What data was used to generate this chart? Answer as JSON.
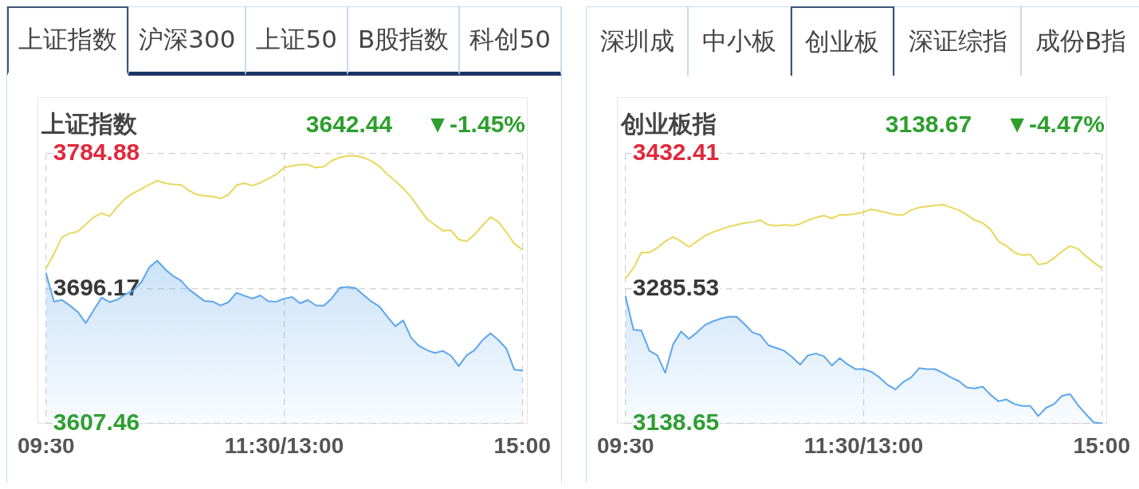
{
  "chart_data": [
    {
      "type": "line",
      "title": "上证指数",
      "subtitle": "3642.44",
      "annotations": [
        "▼-1.45%",
        "上证指数",
        "沪深300",
        "上证50",
        "B股指数",
        "科创50"
      ],
      "categories": [
        "09:30",
        null,
        null,
        null,
        null,
        null,
        null,
        null,
        null,
        null,
        null,
        null,
        null,
        null,
        null,
        null,
        null,
        null,
        null,
        null,
        null,
        null,
        null,
        null,
        null,
        null,
        null,
        null,
        null,
        null,
        "11:30/13:00",
        null,
        null,
        null,
        null,
        null,
        null,
        null,
        null,
        null,
        null,
        null,
        null,
        null,
        null,
        null,
        null,
        null,
        null,
        null,
        null,
        null,
        null,
        null,
        null,
        null,
        null,
        null,
        null,
        null,
        "15:00"
      ],
      "ylim": [
        3607.46,
        3784.88
      ],
      "yticks": [
        3607.46,
        3696.17,
        3784.88
      ],
      "grid": true,
      "series": [
        {
          "type": "area",
          "color": "#5ca6ec",
          "values": [
            3706.2,
            3687.7,
            3688.8,
            3685.1,
            3680.9,
            3673.6,
            3682.0,
            3690.4,
            3687.4,
            3689.0,
            3692.5,
            3694.9,
            3700.4,
            3710.2,
            3714.6,
            3709.0,
            3704.6,
            3701.5,
            3695.7,
            3691.8,
            3688.0,
            3687.7,
            3685.1,
            3687.4,
            3693.5,
            3691.5,
            3689.7,
            3691.7,
            3687.9,
            3687.6,
            3689.7,
            3690.7,
            3686.6,
            3688.7,
            3685.2,
            3685.0,
            3689.8,
            3696.8,
            3697.3,
            3696.6,
            3692.1,
            3687.7,
            3684.5,
            3677.8,
            3671.5,
            3675.3,
            3663.9,
            3658.5,
            3655.8,
            3653.9,
            3655.3,
            3652.2,
            3645.3,
            3652.4,
            3655.8,
            3662.4,
            3666.9,
            3662.4,
            3656.8,
            3643.0,
            3642.4
          ]
        },
        {
          "type": "line",
          "color": "#e8d85c",
          "values": [
            3709.7,
            3719.1,
            3730.0,
            3732.6,
            3733.7,
            3738.5,
            3743.2,
            3745.8,
            3743.7,
            3750.1,
            3755.5,
            3759.0,
            3761.7,
            3764.5,
            3767.2,
            3765.5,
            3764.7,
            3764.5,
            3760.7,
            3758.0,
            3757.1,
            3756.7,
            3755.4,
            3758.0,
            3764.2,
            3765.5,
            3763.9,
            3765.8,
            3768.5,
            3771.3,
            3775.8,
            3776.9,
            3777.7,
            3777.7,
            3775.7,
            3776.4,
            3780.3,
            3782.4,
            3783.4,
            3783.6,
            3782.3,
            3780.1,
            3776.6,
            3771.4,
            3766.9,
            3762.1,
            3756.4,
            3749.0,
            3742.0,
            3738.0,
            3734.3,
            3734.6,
            3728.5,
            3727.3,
            3731.7,
            3737.9,
            3743.2,
            3740.1,
            3733.3,
            3725.8,
            3721.9
          ]
        }
      ]
    },
    {
      "type": "line",
      "title": "创业板指",
      "subtitle": "3138.67",
      "annotations": [
        "▼-4.47%",
        "深圳成",
        "中小板",
        "创业板",
        "深证综指",
        "成份B指"
      ],
      "categories": [
        "09:30",
        null,
        null,
        null,
        null,
        null,
        null,
        null,
        null,
        null,
        null,
        null,
        null,
        null,
        null,
        null,
        null,
        null,
        null,
        null,
        null,
        null,
        null,
        null,
        null,
        null,
        null,
        null,
        null,
        null,
        "11:30/13:00",
        null,
        null,
        null,
        null,
        null,
        null,
        null,
        null,
        null,
        null,
        null,
        null,
        null,
        null,
        null,
        null,
        null,
        null,
        null,
        null,
        null,
        null,
        null,
        null,
        null,
        null,
        null,
        null,
        null,
        "15:00"
      ],
      "ylim": [
        3138.65,
        3432.41
      ],
      "yticks": [
        3138.65,
        3285.53,
        3432.41
      ],
      "grid": true,
      "series": [
        {
          "type": "area",
          "color": "#5ca6ec",
          "values": [
            3277,
            3241,
            3240,
            3218,
            3213,
            3194,
            3225,
            3239,
            3231,
            3238,
            3246,
            3250,
            3253,
            3255,
            3255,
            3247,
            3238,
            3235,
            3224,
            3221,
            3218,
            3211,
            3203,
            3213,
            3215,
            3212,
            3202,
            3210,
            3203,
            3198,
            3198,
            3195,
            3189,
            3181,
            3176,
            3184,
            3189,
            3199,
            3198,
            3198,
            3194,
            3189,
            3185,
            3178,
            3177,
            3179,
            3170,
            3163,
            3165,
            3160,
            3158,
            3158,
            3147,
            3156,
            3160,
            3169,
            3171,
            3159,
            3149,
            3140,
            3139
          ]
        },
        {
          "type": "line",
          "color": "#e8d85c",
          "values": [
            3297,
            3308,
            3325,
            3325,
            3330,
            3337,
            3342,
            3337,
            3331,
            3337,
            3343,
            3347,
            3350,
            3353,
            3355,
            3357,
            3358,
            3360,
            3355,
            3354,
            3355,
            3354,
            3356,
            3360,
            3363,
            3365,
            3362,
            3366,
            3366,
            3367,
            3369,
            3372,
            3370,
            3368,
            3366,
            3366,
            3371,
            3374,
            3375,
            3376,
            3377,
            3374,
            3371,
            3366,
            3360,
            3357,
            3350,
            3337,
            3332,
            3325,
            3322,
            3323,
            3312,
            3313,
            3319,
            3326,
            3332,
            3329,
            3321,
            3314,
            3308
          ]
        }
      ]
    }
  ]
}
